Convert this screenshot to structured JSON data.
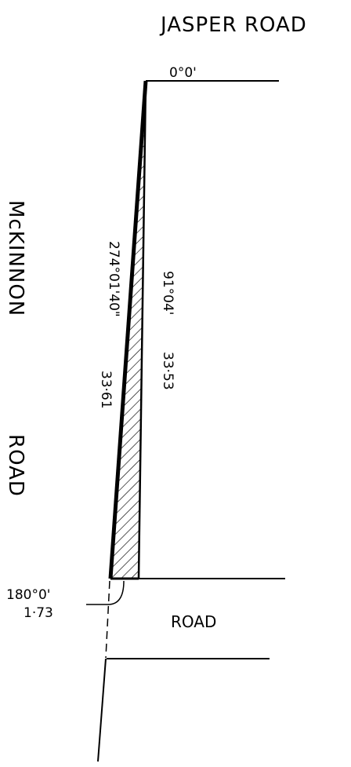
{
  "roads": {
    "top": "JASPER ROAD",
    "left_upper": "McKINNON",
    "left_lower": "ROAD",
    "bottom": "ROAD"
  },
  "annotations": {
    "top_bearing": "0°0'",
    "left_boundary": "274°01'40\"",
    "left_length": "33·61",
    "right_boundary": "91°04'",
    "right_length": "33·53",
    "bottom_bearing": "180°0'",
    "bottom_length": "1·73"
  }
}
